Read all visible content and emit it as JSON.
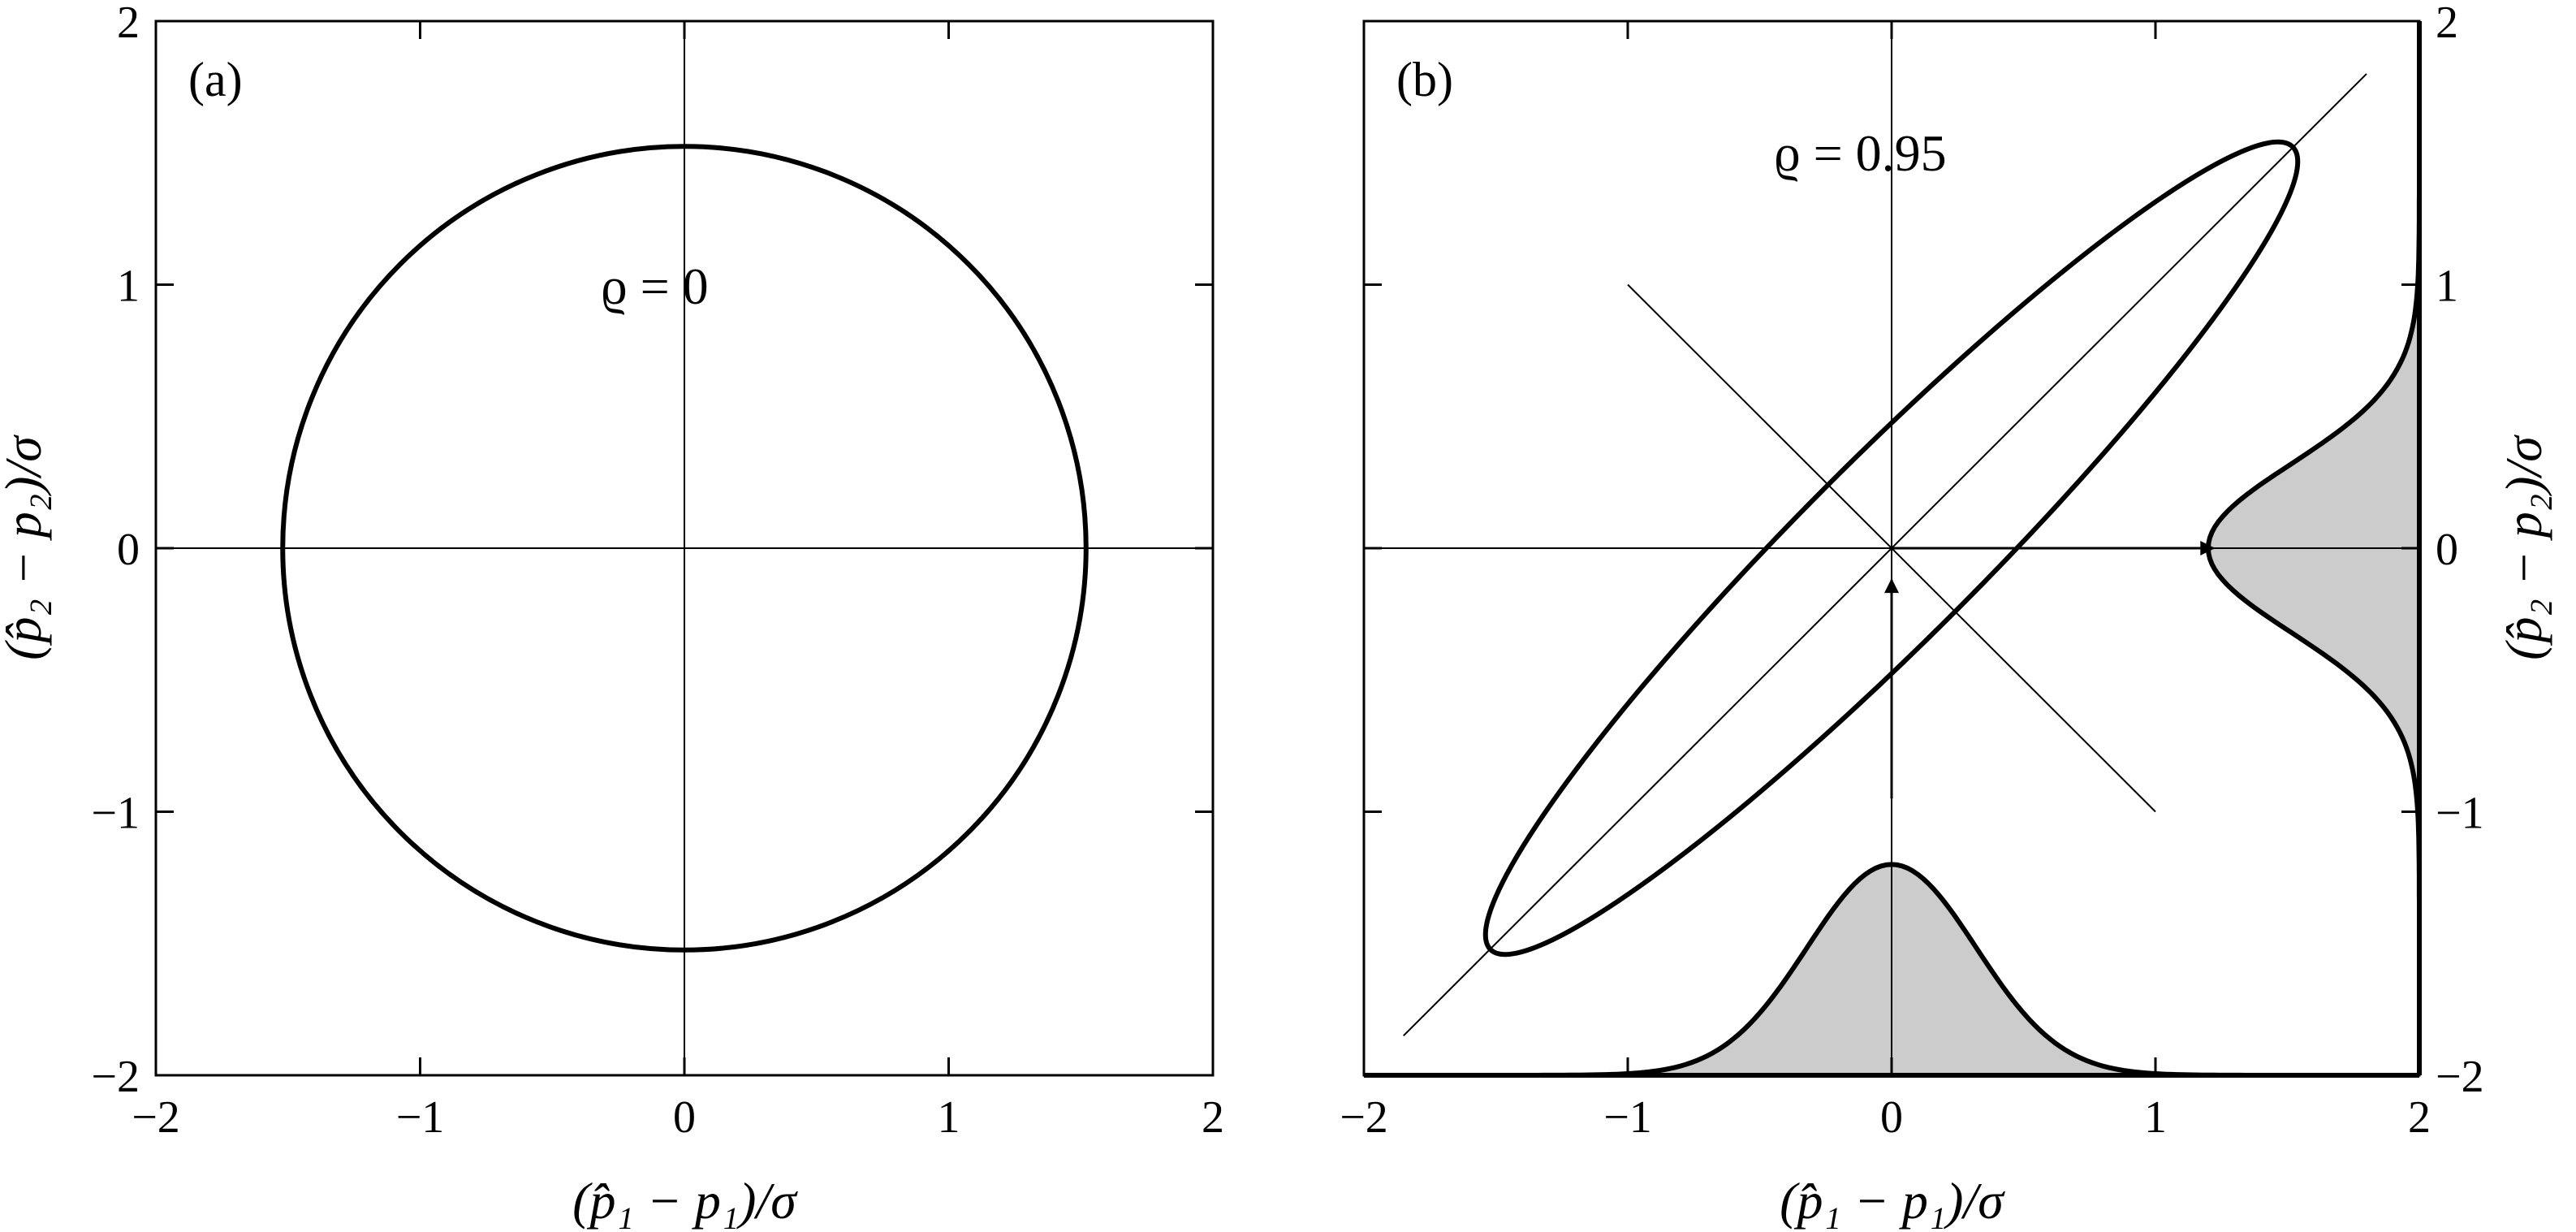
{
  "chart_data": [
    {
      "panel": "(a)",
      "type": "scatter",
      "annotation": "ϱ = 0",
      "rho": 0,
      "xlabel": "(p̂₁ − p₁)/σ",
      "ylabel": "(p̂₂ − p₂)/σ",
      "xlim": [
        -2,
        2
      ],
      "ylim": [
        -2,
        2
      ],
      "xticks": [
        "−2",
        "−1",
        "0",
        "1",
        "2"
      ],
      "yticks": [
        "−2",
        "−1",
        "0",
        "1",
        "2"
      ],
      "contour": {
        "shape": "circle",
        "center": [
          0,
          0
        ],
        "radius": 1.52
      },
      "axes_lines": [
        "x = 0",
        "y = 0"
      ]
    },
    {
      "panel": "(b)",
      "type": "scatter",
      "annotation": "ϱ = 0.95",
      "rho": 0.95,
      "xlabel": "(p̂₁ − p₁)/σ",
      "ylabel": "(p̂₂ − p₂)/σ",
      "xlim": [
        -2,
        2
      ],
      "ylim": [
        -2,
        2
      ],
      "xticks": [
        "−2",
        "−1",
        "0",
        "1",
        "2"
      ],
      "yticks": [
        "−2",
        "−1",
        "0",
        "1",
        "2"
      ],
      "contour": {
        "shape": "ellipse",
        "center": [
          0,
          0
        ],
        "rotation_deg": 45,
        "major_semi_axis": 2.15,
        "minor_semi_axis": 0.34,
        "end_points": [
          [
            -1.52,
            -1.52
          ],
          [
            1.52,
            1.52
          ]
        ]
      },
      "principal_axes": [
        {
          "from": [
            -1.85,
            -1.85
          ],
          "to": [
            1.8,
            1.8
          ]
        },
        {
          "from": [
            -1.0,
            1.0
          ],
          "to": [
            1.0,
            -1.0
          ]
        }
      ],
      "marginal_x": {
        "baseline": -2.0,
        "peak_height": 0.8,
        "center": 0,
        "sigma": 0.32,
        "shaded": true
      },
      "marginal_y": {
        "baseline": 2.0,
        "peak_depth": 0.8,
        "center": 0,
        "sigma": 0.32,
        "shaded": true
      },
      "arrows": [
        {
          "from": [
            0,
            -0.95
          ],
          "to": [
            0,
            -0.12
          ]
        },
        {
          "from": [
            0,
            0
          ],
          "to": [
            1.22,
            0
          ]
        }
      ]
    }
  ]
}
